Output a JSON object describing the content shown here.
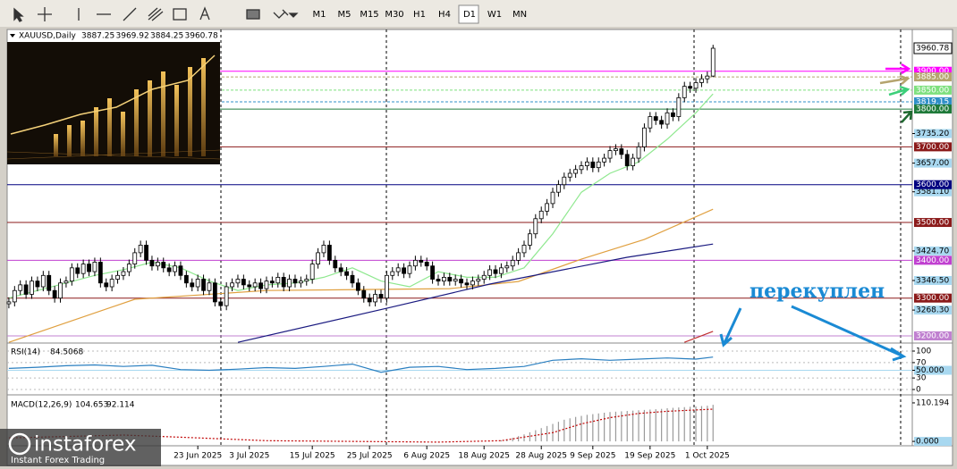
{
  "toolbar": {
    "timeframes": [
      "M1",
      "M5",
      "M15",
      "M30",
      "H1",
      "H4",
      "D1",
      "W1",
      "MN"
    ],
    "active": "D1"
  },
  "logo": {
    "name": "instaforex",
    "tagline": "Instant Forex Trading"
  },
  "chart_data": [
    {
      "type": "candlestick",
      "symbol": "XAUUSD,Daily",
      "annotation": "перекуплен",
      "candles": {
        "open": [
          3285,
          3290,
          3320,
          3335,
          3310,
          3345,
          3330,
          3360,
          3320,
          3300,
          3340,
          3345,
          3380,
          3365,
          3390,
          3370,
          3395,
          3340,
          3330,
          3350,
          3360,
          3370,
          3390,
          3420,
          3440,
          3400,
          3385,
          3395,
          3380,
          3370,
          3385,
          3360,
          3340,
          3330,
          3350,
          3320,
          3340,
          3290,
          3280,
          3330,
          3340,
          3350,
          3335,
          3330,
          3340,
          3325,
          3345,
          3340,
          3355,
          3330,
          3350,
          3340,
          3345,
          3350,
          3390,
          3420,
          3440,
          3400,
          3380,
          3370,
          3360,
          3340,
          3320,
          3300,
          3290,
          3310,
          3300,
          3360,
          3370,
          3380,
          3365,
          3385,
          3400,
          3395,
          3385,
          3350,
          3345,
          3355,
          3345,
          3350,
          3340,
          3335,
          3345,
          3350,
          3360,
          3375,
          3365,
          3380,
          3385,
          3400,
          3420,
          3440,
          3470,
          3510,
          3530,
          3550,
          3580,
          3600,
          3620,
          3630,
          3640,
          3650,
          3660,
          3645,
          3660,
          3670,
          3690,
          3695,
          3680,
          3650,
          3670,
          3700,
          3750,
          3780,
          3770,
          3760,
          3790,
          3780,
          3830,
          3860,
          3855,
          3870,
          3880,
          3887.25
        ],
        "high": [
          3302,
          3332,
          3347,
          3347,
          3357,
          3357,
          3372,
          3372,
          3332,
          3352,
          3357,
          3392,
          3392,
          3402,
          3402,
          3407,
          3407,
          3352,
          3362,
          3372,
          3382,
          3402,
          3432,
          3452,
          3452,
          3412,
          3407,
          3407,
          3392,
          3397,
          3397,
          3372,
          3352,
          3362,
          3362,
          3352,
          3352,
          3302,
          3342,
          3352,
          3362,
          3362,
          3347,
          3352,
          3352,
          3357,
          3357,
          3367,
          3367,
          3362,
          3362,
          3357,
          3362,
          3402,
          3432,
          3452,
          3452,
          3412,
          3392,
          3382,
          3372,
          3352,
          3332,
          3312,
          3322,
          3322,
          3372,
          3382,
          3392,
          3392,
          3397,
          3412,
          3412,
          3407,
          3397,
          3362,
          3367,
          3367,
          3362,
          3362,
          3352,
          3357,
          3362,
          3372,
          3387,
          3387,
          3392,
          3397,
          3412,
          3432,
          3452,
          3482,
          3522,
          3542,
          3562,
          3592,
          3612,
          3632,
          3642,
          3652,
          3662,
          3672,
          3672,
          3672,
          3682,
          3702,
          3707,
          3707,
          3692,
          3682,
          3712,
          3762,
          3792,
          3792,
          3782,
          3802,
          3802,
          3842,
          3872,
          3872,
          3882,
          3892,
          3899,
          3969.92
        ],
        "low": [
          3273,
          3278,
          3308,
          3298,
          3298,
          3318,
          3318,
          3308,
          3288,
          3288,
          3328,
          3333,
          3353,
          3353,
          3358,
          3358,
          3328,
          3318,
          3318,
          3338,
          3348,
          3358,
          3378,
          3408,
          3388,
          3373,
          3373,
          3368,
          3358,
          3358,
          3348,
          3328,
          3318,
          3318,
          3308,
          3308,
          3278,
          3268,
          3268,
          3318,
          3328,
          3323,
          3318,
          3318,
          3313,
          3313,
          3328,
          3328,
          3318,
          3318,
          3328,
          3328,
          3333,
          3338,
          3378,
          3408,
          3388,
          3368,
          3358,
          3348,
          3328,
          3308,
          3288,
          3278,
          3278,
          3288,
          3288,
          3348,
          3358,
          3353,
          3353,
          3373,
          3383,
          3373,
          3338,
          3333,
          3333,
          3333,
          3333,
          3328,
          3323,
          3323,
          3333,
          3338,
          3348,
          3353,
          3353,
          3368,
          3373,
          3388,
          3408,
          3428,
          3458,
          3498,
          3518,
          3538,
          3568,
          3588,
          3608,
          3618,
          3628,
          3638,
          3633,
          3633,
          3648,
          3658,
          3678,
          3668,
          3638,
          3638,
          3658,
          3688,
          3738,
          3758,
          3748,
          3748,
          3768,
          3768,
          3818,
          3843,
          3843,
          3858,
          3868,
          3884.25
        ],
        "close": [
          3290,
          3320,
          3335,
          3310,
          3345,
          3330,
          3360,
          3320,
          3300,
          3340,
          3345,
          3380,
          3365,
          3390,
          3370,
          3395,
          3340,
          3330,
          3350,
          3360,
          3370,
          3390,
          3420,
          3440,
          3400,
          3385,
          3395,
          3380,
          3370,
          3385,
          3360,
          3340,
          3330,
          3350,
          3320,
          3340,
          3290,
          3280,
          3330,
          3340,
          3350,
          3335,
          3330,
          3340,
          3325,
          3345,
          3340,
          3355,
          3330,
          3350,
          3340,
          3345,
          3350,
          3390,
          3420,
          3440,
          3400,
          3380,
          3370,
          3360,
          3340,
          3320,
          3300,
          3290,
          3310,
          3300,
          3360,
          3370,
          3380,
          3365,
          3385,
          3400,
          3395,
          3385,
          3350,
          3345,
          3355,
          3345,
          3350,
          3340,
          3335,
          3345,
          3350,
          3360,
          3375,
          3365,
          3380,
          3385,
          3400,
          3420,
          3440,
          3470,
          3510,
          3530,
          3550,
          3580,
          3600,
          3620,
          3630,
          3640,
          3650,
          3660,
          3645,
          3660,
          3670,
          3690,
          3695,
          3680,
          3650,
          3670,
          3700,
          3750,
          3780,
          3770,
          3760,
          3790,
          3780,
          3830,
          3860,
          3855,
          3870,
          3880,
          3887.25,
          3960.78
        ]
      },
      "lines": [
        {
          "color": "#8fe88f",
          "x": [
            0,
            5,
            10,
            15,
            20,
            25,
            30,
            35,
            40,
            45,
            50,
            55,
            60,
            65,
            70,
            75,
            80,
            85,
            90,
            95,
            100,
            105,
            110,
            115,
            120,
            123
          ],
          "values": [
            3300,
            3320,
            3340,
            3360,
            3375,
            3395,
            3380,
            3345,
            3320,
            3335,
            3340,
            3355,
            3380,
            3345,
            3330,
            3370,
            3355,
            3355,
            3380,
            3470,
            3580,
            3630,
            3660,
            3720,
            3790,
            3840
          ]
        },
        {
          "color": "#e0a040",
          "x": [
            0,
            22,
            45,
            77,
            89,
            100,
            111,
            123
          ],
          "values": [
            3183,
            3297,
            3320,
            3325,
            3344,
            3403,
            3455,
            3535
          ]
        },
        {
          "color": "#1a1a80",
          "x": [
            40,
            66,
            84,
            108,
            123
          ],
          "values": [
            3183,
            3273,
            3337,
            3408,
            3443
          ]
        },
        {
          "color": "#c03030",
          "x": [
            118,
            123
          ],
          "values": [
            3183,
            3212
          ]
        }
      ],
      "levels": [
        {
          "value": 3900,
          "label": "3900.00",
          "color": "#ff00ff"
        },
        {
          "value": 3885,
          "label": "3885.00",
          "color": "#b5a46e",
          "dashed": true
        },
        {
          "value": 3850,
          "label": "3850.00",
          "color": "#7ee07e",
          "dashed": true
        },
        {
          "value": 3819.15,
          "label": "3819.15",
          "color": "#2f8fc7",
          "dashed": true
        },
        {
          "value": 3800,
          "label": "3800.00",
          "color": "#1f7a3a"
        },
        {
          "value": 3700,
          "label": "3700.00",
          "color": "#8b1a1a"
        },
        {
          "value": 3600,
          "label": "3600.00",
          "color": "#000080"
        },
        {
          "value": 3500,
          "label": "3500.00",
          "color": "#8b1a1a"
        },
        {
          "value": 3400,
          "label": "3400.00",
          "color": "#c040d0"
        },
        {
          "value": 3300,
          "label": "3300.00",
          "color": "#8b1a1a"
        },
        {
          "value": 3200,
          "label": "3200.00",
          "color": "#c080d0"
        }
      ],
      "ylim": [
        3183.5,
        4005.7
      ],
      "yticks": [
        {
          "value": 3268.3,
          "label": "3268.30"
        },
        {
          "value": 3346.5,
          "label": "3346.50"
        },
        {
          "value": 3424.7,
          "label": "3424.70"
        },
        {
          "value": 3581.1,
          "label": "3581.10"
        },
        {
          "value": 3657,
          "label": "3657.00"
        },
        {
          "value": 3735.2,
          "label": "3735.20"
        }
      ],
      "xlim": [
        -0.3,
        157.8
      ],
      "xticks": [
        {
          "value": 33,
          "label": "23 Jun 2025"
        },
        {
          "value": 42,
          "label": "3 Jul 2025"
        },
        {
          "value": 53,
          "label": "15 Jul 2025"
        },
        {
          "value": 63,
          "label": "25 Jul 2025"
        },
        {
          "value": 73,
          "label": "6 Aug 2025"
        },
        {
          "value": 83,
          "label": "18 Aug 2025"
        },
        {
          "value": 93,
          "label": "28 Aug 2025"
        },
        {
          "value": 102,
          "label": "9 Sep 2025"
        },
        {
          "value": 112,
          "label": "19 Sep 2025"
        },
        {
          "value": 122,
          "label": "1 Oct 2025"
        }
      ]
    },
    {
      "type": "line",
      "title": "RSI(14)",
      "series": [
        {
          "color": "#2a7fc0",
          "x": [
            0,
            5,
            10,
            15,
            20,
            25,
            30,
            35,
            40,
            45,
            50,
            55,
            60,
            65,
            70,
            75,
            80,
            85,
            90,
            95,
            100,
            105,
            110,
            115,
            120,
            123
          ],
          "values": [
            55,
            58,
            62,
            64,
            60,
            63,
            52,
            50,
            53,
            57,
            55,
            60,
            66,
            45,
            58,
            60,
            52,
            55,
            60,
            76,
            80,
            76,
            79,
            82,
            79,
            84.5068
          ]
        }
      ],
      "ylim": [
        -11.6,
        116.3
      ],
      "yticks": [
        100,
        70,
        {
          "value": 50,
          "label": "50.000"
        },
        30,
        0
      ]
    },
    {
      "type": "macd",
      "title": "MACD(12,26,9)",
      "histogram": {
        "color": "#9a9a9a",
        "x": [
          86,
          87,
          88,
          89,
          90,
          91,
          92,
          93,
          94,
          95,
          96,
          97,
          98,
          99,
          100,
          101,
          102,
          103,
          104,
          105,
          106,
          107,
          108,
          109,
          110,
          111,
          112,
          113,
          114,
          115,
          116,
          117,
          118,
          119,
          120,
          121,
          122,
          123
        ],
        "values": [
          3,
          6,
          10,
          15,
          20,
          26,
          32,
          38,
          44,
          50,
          56,
          62,
          66,
          70,
          73,
          76,
          78,
          80,
          82,
          84,
          85,
          86,
          87,
          88,
          89,
          90,
          91,
          92,
          93,
          95,
          96,
          97,
          98,
          99,
          100,
          101,
          102,
          104.653
        ]
      },
      "signal": {
        "color": "#c00000",
        "x": [
          0,
          20,
          30,
          45,
          60,
          75,
          86,
          95,
          100,
          105,
          110,
          115,
          120,
          123
        ],
        "values": [
          10,
          18,
          12,
          2,
          0,
          -2,
          2,
          25,
          50,
          68,
          80,
          86,
          90,
          92.114
        ]
      },
      "ylim": [
        -10,
        128
      ],
      "yticks": [
        110.194,
        {
          "value": 0,
          "label": "0.000"
        }
      ]
    }
  ]
}
